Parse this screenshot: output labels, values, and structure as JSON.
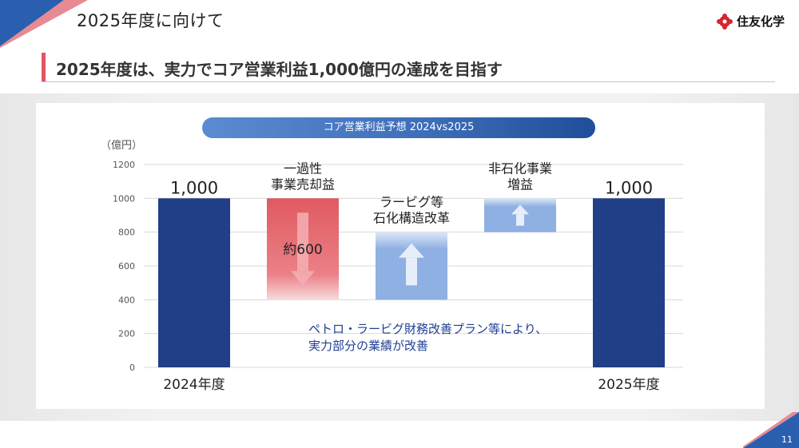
{
  "header": {
    "title": "2025年度に向けて",
    "logo_text": "住友化学",
    "page_number": "11"
  },
  "subtitle": "2025年度は、実力でコア営業利益1,000億円の達成を目指す",
  "colors": {
    "accent_red": "#e25563",
    "navy": "#213f87",
    "brand_blue": "#2a5fb0"
  },
  "chart_data": {
    "type": "bar",
    "subtype": "waterfall",
    "title": "コア営業利益予想 2024vs2025",
    "ylabel": "（億円）",
    "ylim": [
      0,
      1200
    ],
    "yticks": [
      0,
      200,
      400,
      600,
      800,
      1000,
      1200
    ],
    "grid": true,
    "bars": [
      {
        "label": "2024年度",
        "kind": "total",
        "from": 0,
        "to": 1000,
        "value_label": "1,000",
        "color": "#213f87"
      },
      {
        "label": "一過性\n事業売却益",
        "kind": "decrease",
        "from": 1000,
        "to": 400,
        "value_label": "約600",
        "color": "#e7646a"
      },
      {
        "label": "ラービグ等\n石化構造改革",
        "kind": "increase",
        "from": 400,
        "to": 800,
        "value_label": "",
        "color": "#8fb0e3"
      },
      {
        "label": "非石化事業\n増益",
        "kind": "increase",
        "from": 800,
        "to": 1000,
        "value_label": "",
        "color": "#8fb0e3"
      },
      {
        "label": "2025年度",
        "kind": "total",
        "from": 0,
        "to": 1000,
        "value_label": "1,000",
        "color": "#213f87"
      }
    ],
    "annotation": "ペトロ・ラービグ財務改善プラン等により、\n実力部分の業績が改善"
  }
}
